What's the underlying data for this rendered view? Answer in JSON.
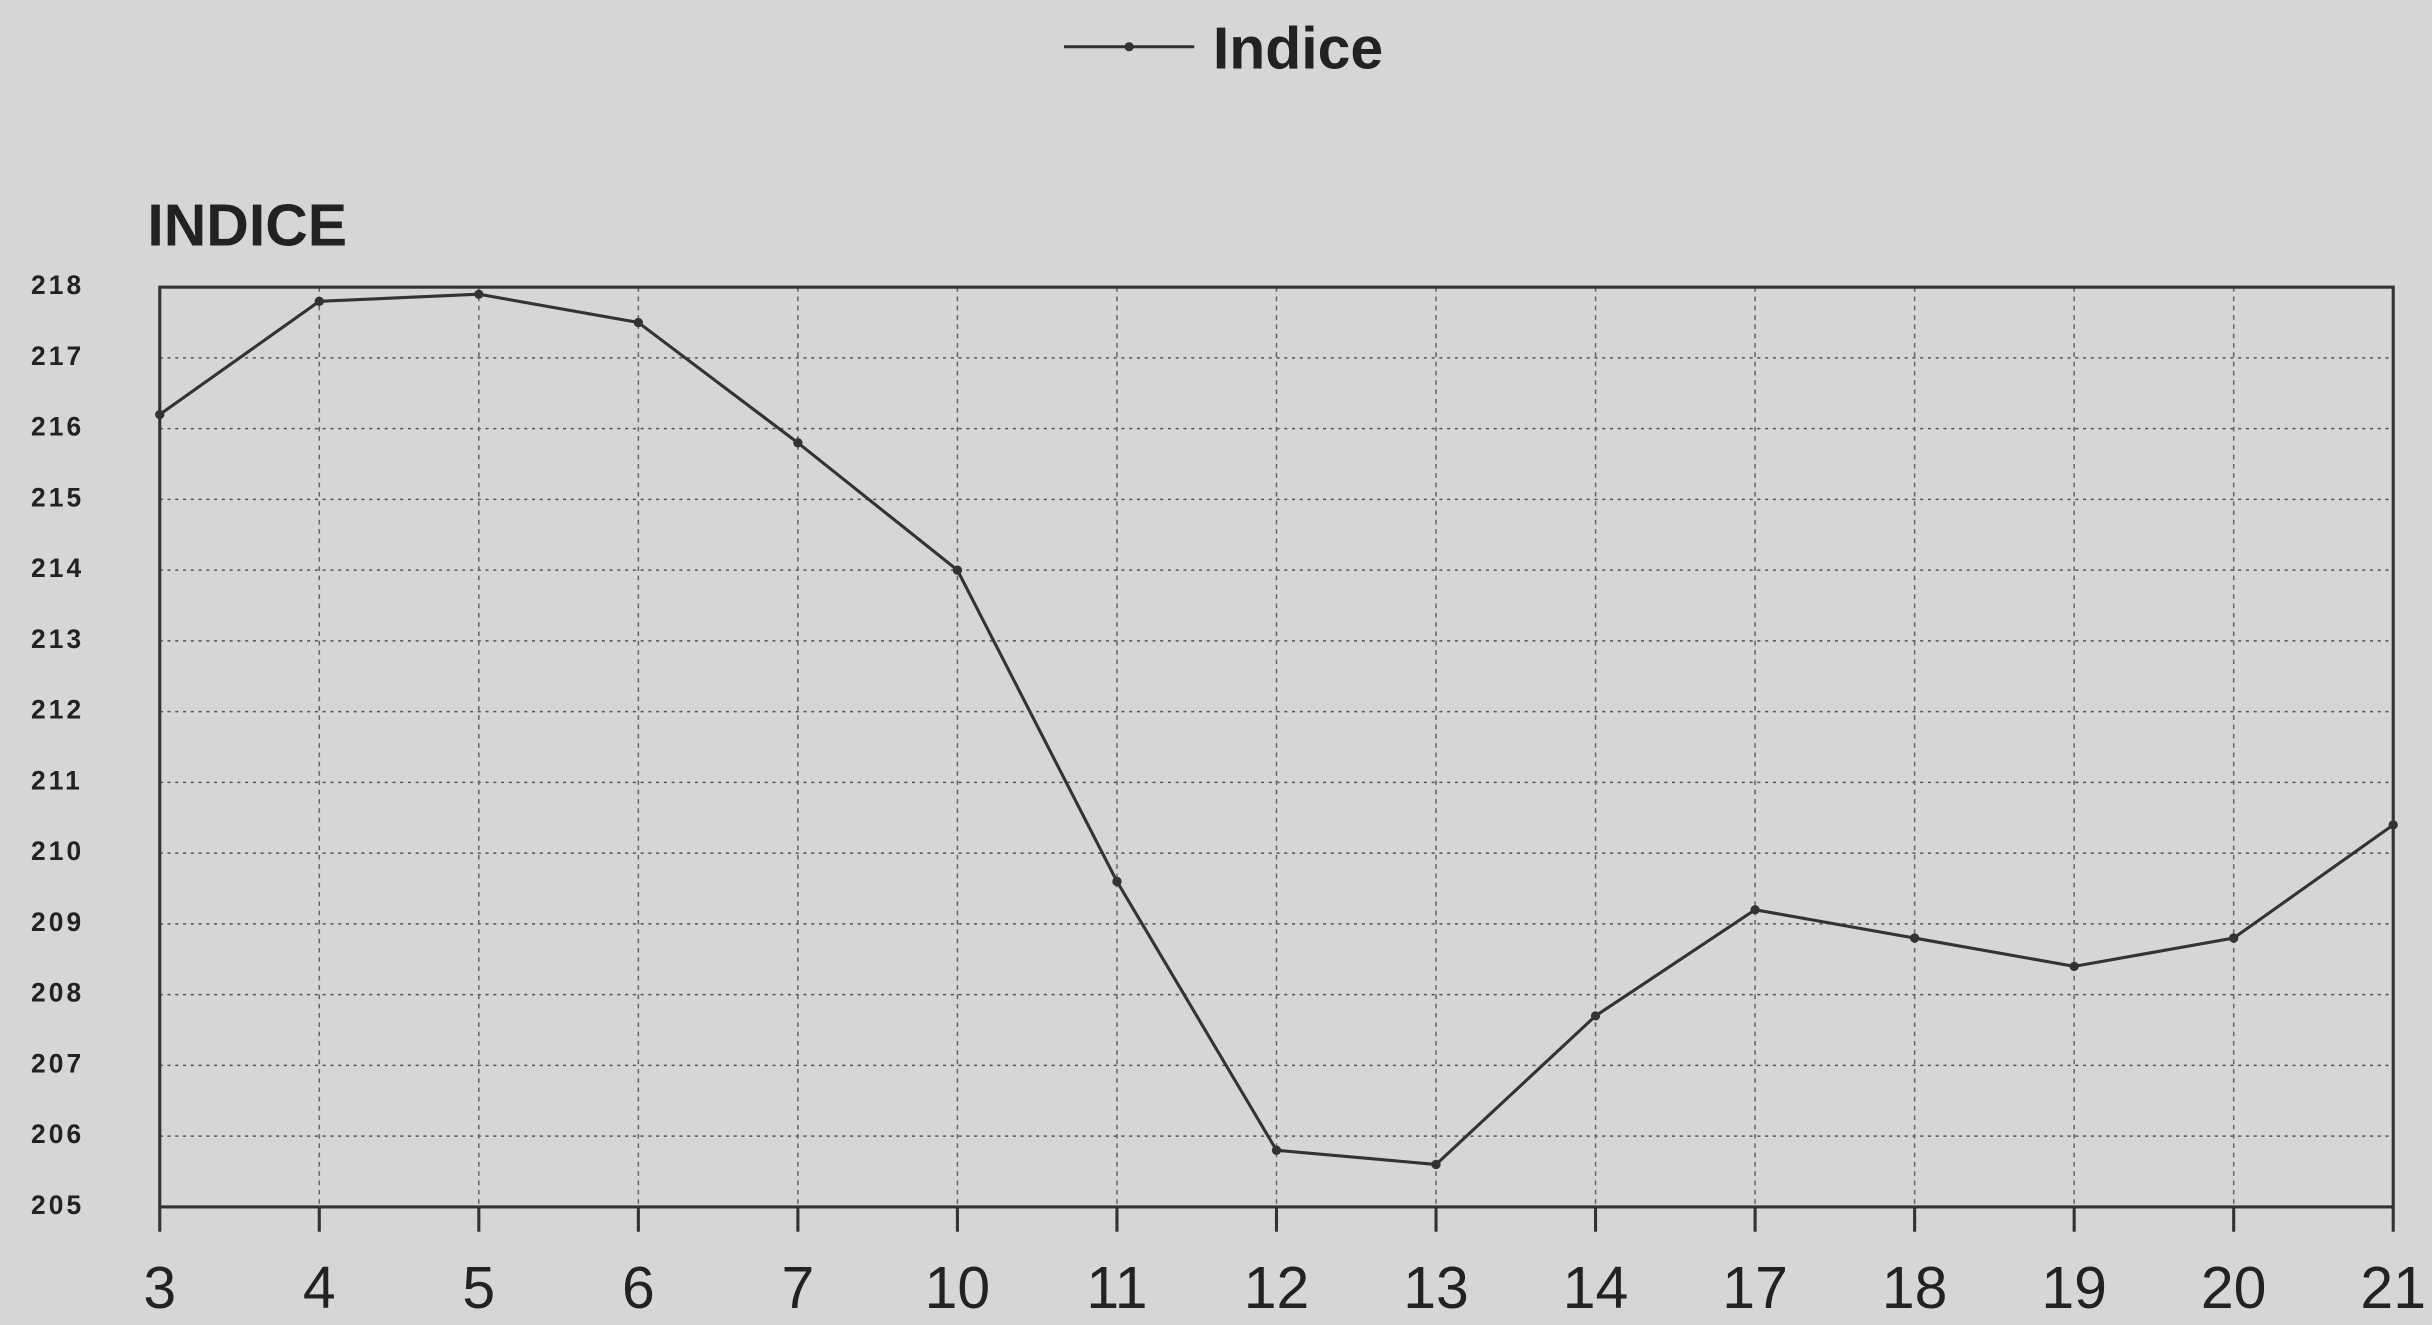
{
  "chart_data": {
    "type": "line",
    "legend_label": "Indice",
    "y_axis_label": "INDICE",
    "categories": [
      "3",
      "4",
      "5",
      "6",
      "7",
      "10",
      "11",
      "12",
      "13",
      "14",
      "17",
      "18",
      "19",
      "20",
      "21"
    ],
    "series": [
      {
        "name": "Indice",
        "color": "#333333",
        "values": [
          216.2,
          217.8,
          217.9,
          217.5,
          215.8,
          214.0,
          209.6,
          205.8,
          205.6,
          207.7,
          209.2,
          208.8,
          208.4,
          208.8,
          210.4
        ]
      }
    ],
    "ylim": [
      205,
      218
    ],
    "yticks": [
      205,
      206,
      207,
      208,
      209,
      210,
      211,
      212,
      213,
      214,
      215,
      216,
      217,
      218
    ],
    "grid": true
  }
}
